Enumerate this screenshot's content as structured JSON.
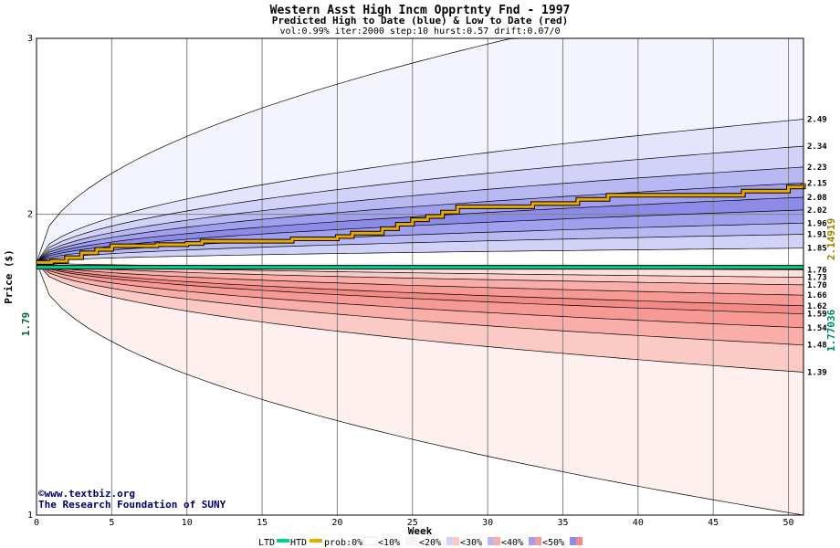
{
  "header": {
    "title": "Western Asst High Incm Opprtnty Fnd - 1997",
    "subtitle": "Predicted High to Date (blue) &  Low to Date (red)",
    "params": "vol:0.99% iter:2000 step:10 hurst:0.57 drift:0.07/0"
  },
  "axes": {
    "xlabel": "Week",
    "ylabel": "Price ($)"
  },
  "current_price_label": "1.79",
  "right_markers": {
    "htd": "2.14919",
    "ltd": "1.77036"
  },
  "copyright": {
    "line1": "©www.textbiz.org",
    "line2": "The Research Foundation of SUNY"
  },
  "legend": {
    "ltd": "LTD",
    "htd": "HTD",
    "prob0": "prob:0%",
    "p10": "<10%",
    "p20": "<20%",
    "p30": "<30%",
    "p40": "<40%",
    "p50": "<50%"
  },
  "colors": {
    "ltd_line": "#00d090",
    "htd_line": "#e8a800",
    "grid": "#808080",
    "high_bands": [
      "#f4f4fe",
      "#e4e4fc",
      "#d2d2f8",
      "#b8b8f2",
      "#a0a0ee",
      "#8c8ce8"
    ],
    "low_bands": [
      "#fef0ee",
      "#fde0dc",
      "#fccac4",
      "#f9aeaa",
      "#f79a96",
      "#f28a86"
    ]
  },
  "chart_data": {
    "type": "area",
    "xlabel": "Week",
    "ylabel": "Price ($)",
    "scale": "log",
    "xlim": [
      0,
      51
    ],
    "ylim": [
      1,
      3
    ],
    "x_ticks": [
      0,
      5,
      10,
      15,
      20,
      25,
      30,
      35,
      40,
      45,
      50
    ],
    "y_ticks": [
      1,
      2,
      3
    ],
    "start_price": 1.79,
    "high_quantile_endpoints": [
      2.49,
      2.34,
      2.23,
      2.15,
      2.08,
      2.02,
      1.96,
      1.91,
      1.85
    ],
    "low_quantile_endpoints": [
      1.76,
      1.73,
      1.7,
      1.66,
      1.62,
      1.59,
      1.54,
      1.48,
      1.39
    ],
    "max_envelope_end": 3.0,
    "min_envelope_end": 1.0,
    "htd_series": {
      "name": "HTD",
      "x": [
        0,
        1,
        2,
        3,
        4,
        5,
        8,
        10,
        11,
        17,
        20,
        21,
        23,
        24,
        25,
        26,
        27,
        28,
        33,
        36,
        38,
        47,
        50,
        51
      ],
      "y": [
        1.79,
        1.795,
        1.81,
        1.83,
        1.845,
        1.86,
        1.865,
        1.87,
        1.88,
        1.89,
        1.9,
        1.915,
        1.935,
        1.955,
        1.975,
        1.99,
        2.01,
        2.035,
        2.05,
        2.07,
        2.09,
        2.11,
        2.13,
        2.14919
      ]
    },
    "ltd_series": {
      "name": "LTD",
      "x": [
        0,
        51
      ],
      "y": [
        1.77036,
        1.77036
      ]
    }
  }
}
